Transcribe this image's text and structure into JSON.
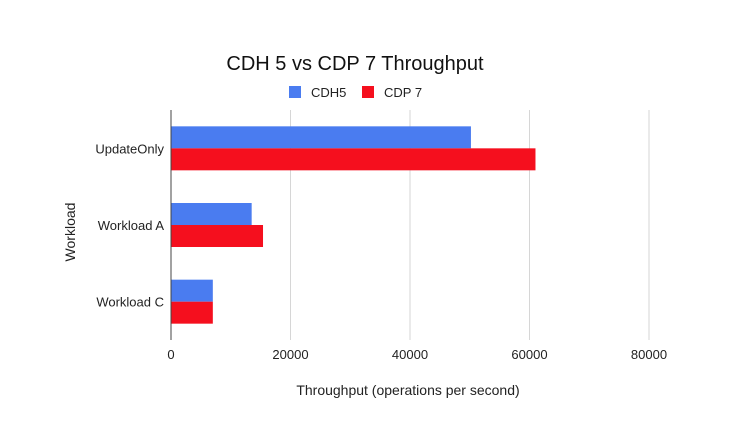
{
  "chart_data": {
    "type": "bar",
    "orientation": "horizontal",
    "title": "CDH 5 vs CDP 7 Throughput",
    "xlabel": "Throughput (operations per second)",
    "ylabel": "Workload",
    "categories": [
      "UpdateOnly",
      "Workload A",
      "Workload C"
    ],
    "series": [
      {
        "name": "CDH5",
        "color": "#4a7cf0",
        "values": [
          50200,
          13500,
          7000
        ]
      },
      {
        "name": "CDP 7",
        "color": "#f50f1e",
        "values": [
          61000,
          15400,
          7000
        ]
      }
    ],
    "xlim": [
      0,
      80000
    ],
    "xticks": [
      0,
      20000,
      40000,
      60000,
      80000
    ],
    "grid": true,
    "legend_position": "top-center"
  }
}
